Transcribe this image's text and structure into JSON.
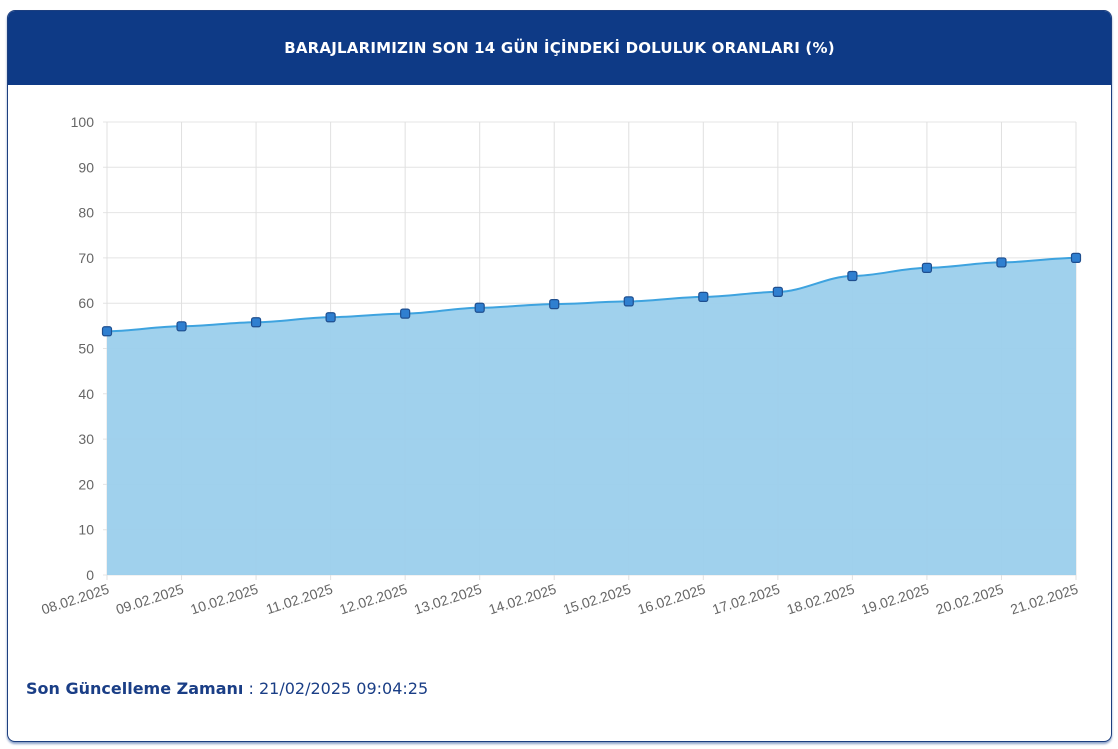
{
  "header": {
    "title": "BARAJLARIMIZIN SON 14 GÜN İÇİNDEKİ DOLULUK ORANLARI (%)"
  },
  "footer": {
    "label": "Son Güncelleme Zamanı",
    "separator": " : ",
    "value": "21/02/2025 09:04:25"
  },
  "chart_data": {
    "type": "area",
    "title": "",
    "xlabel": "",
    "ylabel": "",
    "ylim": [
      0,
      100
    ],
    "yticks": [
      0,
      10,
      20,
      30,
      40,
      50,
      60,
      70,
      80,
      90,
      100
    ],
    "grid": true,
    "colors": {
      "fill": "#9bcfec",
      "line": "#3ea3df",
      "marker": "#2f7fd0",
      "marker_border": "#1f4f8f"
    },
    "categories": [
      "08.02.2025",
      "09.02.2025",
      "10.02.2025",
      "11.02.2025",
      "12.02.2025",
      "13.02.2025",
      "14.02.2025",
      "15.02.2025",
      "16.02.2025",
      "17.02.2025",
      "18.02.2025",
      "19.02.2025",
      "20.02.2025",
      "21.02.2025"
    ],
    "values": [
      53.8,
      54.9,
      55.8,
      56.9,
      57.7,
      59.0,
      59.8,
      60.4,
      61.4,
      62.5,
      66.0,
      67.8,
      69.0,
      70.0
    ]
  }
}
